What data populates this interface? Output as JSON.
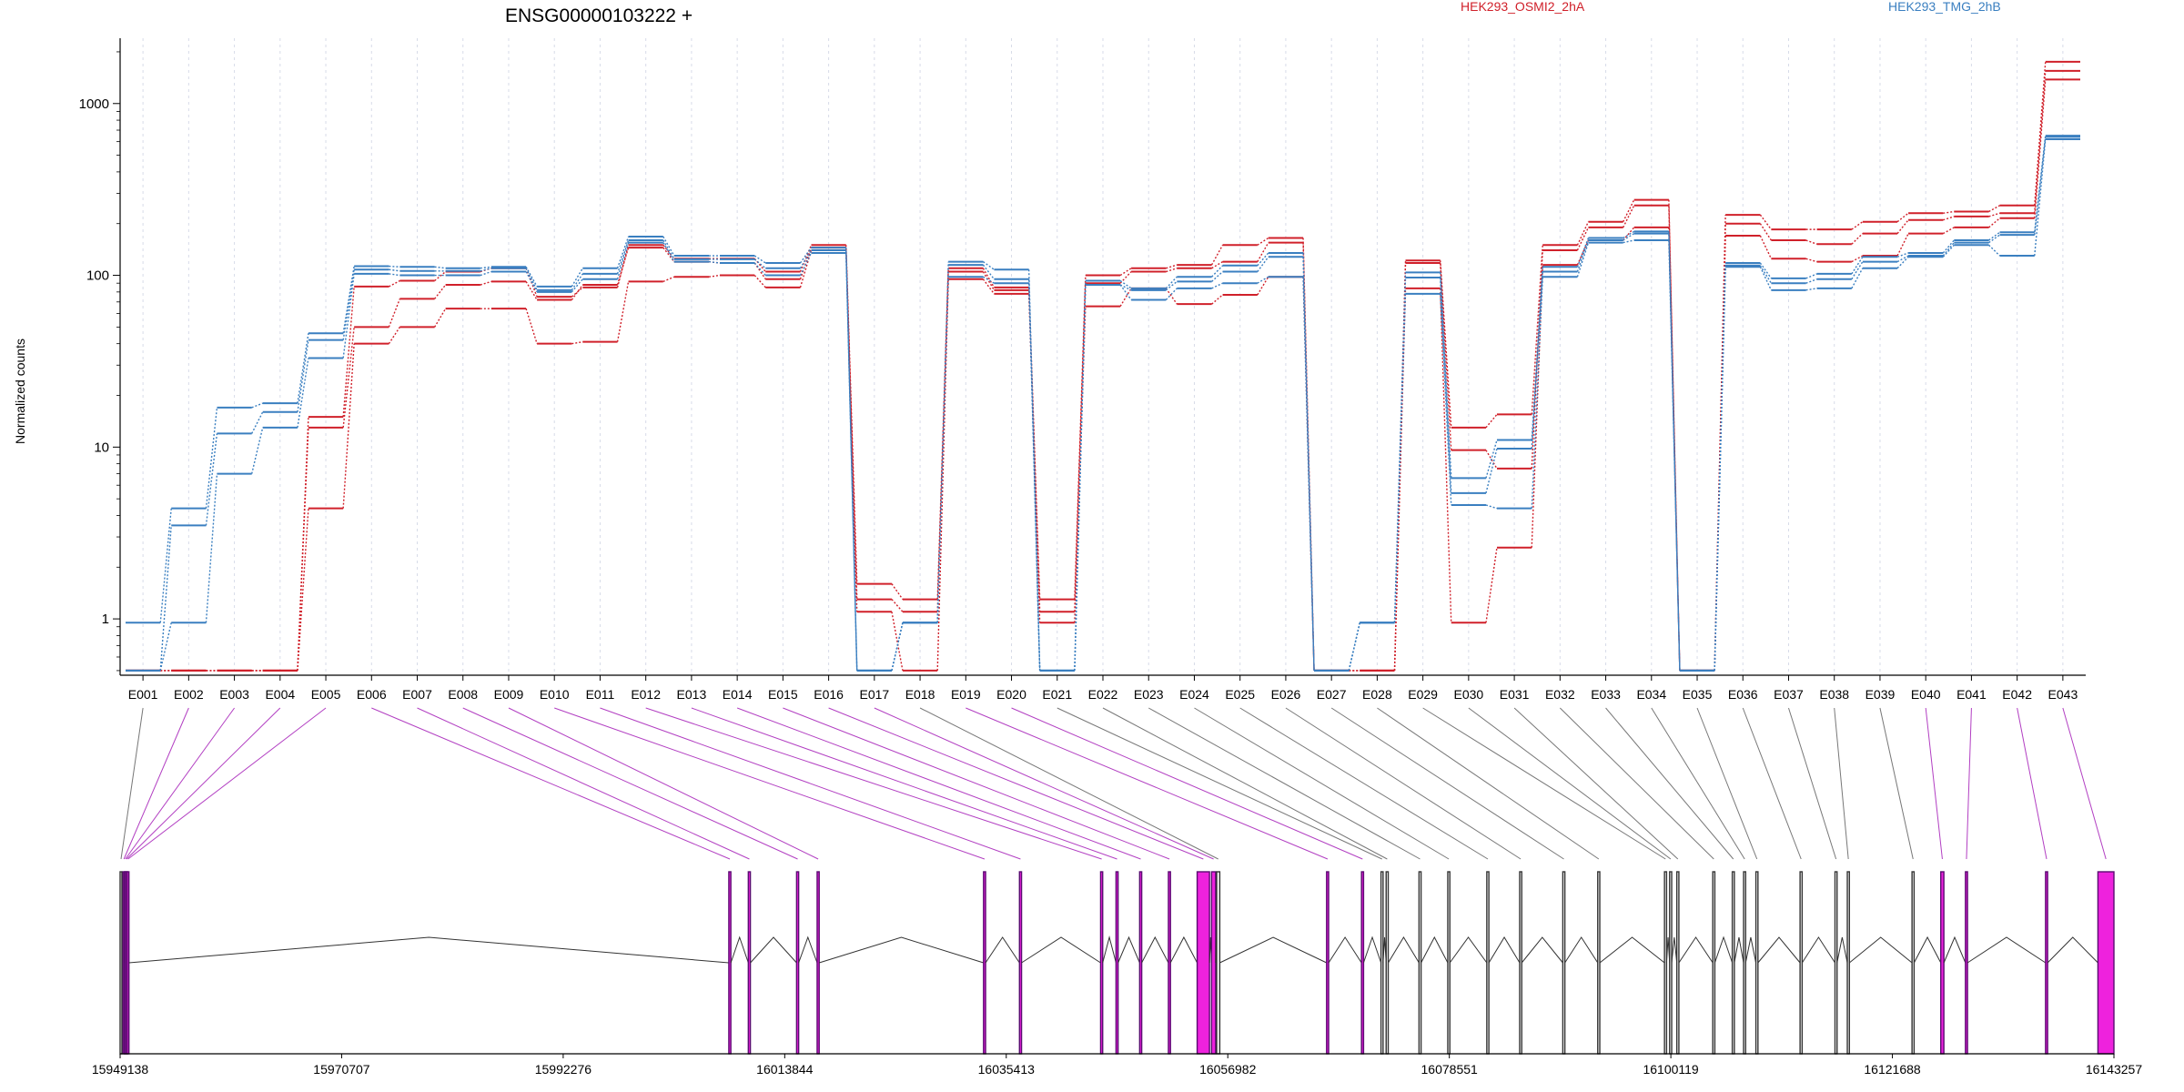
{
  "chart_data": {
    "type": "line",
    "title": "ENSG00000103222 +",
    "ylabel": "Normalized counts",
    "yscale": "log",
    "ylim": [
      0.47,
      2400
    ],
    "yticks": [
      "1",
      "10",
      "100",
      "1000"
    ],
    "ytick_values": [
      1,
      10,
      100,
      1000
    ],
    "legend": [
      {
        "name": "HEK293_OSMI2_2hA",
        "color": "#d0202a"
      },
      {
        "name": "HEK293_TMG_2hB",
        "color": "#3a7fc0"
      }
    ],
    "categories": [
      "E001",
      "E002",
      "E003",
      "E004",
      "E005",
      "E006",
      "E007",
      "E008",
      "E009",
      "E010",
      "E011",
      "E012",
      "E013",
      "E014",
      "E015",
      "E016",
      "E017",
      "E018",
      "E019",
      "E020",
      "E021",
      "E022",
      "E023",
      "E024",
      "E025",
      "E026",
      "E027",
      "E028",
      "E029",
      "E030",
      "E031",
      "E032",
      "E033",
      "E034",
      "E035",
      "E036",
      "E037",
      "E038",
      "E039",
      "E040",
      "E041",
      "E042",
      "E043"
    ],
    "series": [
      {
        "group": "HEK293_OSMI2_2hA",
        "color": "#d0202a",
        "values": [
          0.5,
          0.5,
          0.5,
          0.5,
          15,
          86,
          93,
          105,
          110,
          75,
          85,
          150,
          125,
          125,
          105,
          150,
          1.6,
          1.3,
          110,
          85,
          1.3,
          100,
          110,
          115,
          150,
          165,
          0.5,
          0.5,
          122,
          13,
          15.5,
          150,
          205,
          275,
          0.5,
          225,
          185,
          185,
          205,
          230,
          235,
          255,
          1750
        ]
      },
      {
        "group": "HEK293_OSMI2_2hA",
        "color": "#d0202a",
        "values": [
          0.5,
          0.5,
          0.5,
          0.5,
          13,
          50,
          73,
          88,
          92,
          72,
          88,
          145,
          120,
          118,
          95,
          145,
          1.3,
          1.1,
          105,
          82,
          1.1,
          90,
          105,
          110,
          120,
          155,
          0.5,
          0.5,
          118,
          9.6,
          7.5,
          140,
          190,
          255,
          0.5,
          200,
          160,
          152,
          175,
          210,
          220,
          230,
          1550
        ]
      },
      {
        "group": "HEK293_OSMI2_2hA",
        "color": "#d0202a",
        "values": [
          0.5,
          0.5,
          0.5,
          0.5,
          4.4,
          40,
          50,
          64,
          64,
          40,
          41,
          92,
          98,
          100,
          85,
          140,
          1.1,
          0.5,
          95,
          78,
          0.95,
          66,
          84,
          68,
          77,
          98,
          0.5,
          0.5,
          84,
          0.95,
          2.6,
          115,
          160,
          190,
          0.5,
          170,
          125,
          120,
          130,
          175,
          190,
          215,
          1380
        ]
      },
      {
        "group": "HEK293_TMG_2hB",
        "color": "#3a7fc0",
        "values": [
          0.95,
          4.4,
          17,
          18,
          46,
          113,
          112,
          110,
          112,
          86,
          110,
          168,
          130,
          130,
          118,
          145,
          0.5,
          0.95,
          120,
          108,
          0.5,
          93,
          84,
          98,
          114,
          135,
          0.5,
          0.95,
          104,
          6.6,
          11,
          112,
          165,
          180,
          0.5,
          118,
          96,
          102,
          128,
          135,
          160,
          178,
          650
        ]
      },
      {
        "group": "HEK293_TMG_2hB",
        "color": "#3a7fc0",
        "values": [
          0.5,
          3.5,
          12,
          16,
          42,
          108,
          106,
          106,
          110,
          82,
          102,
          160,
          124,
          124,
          110,
          140,
          0.5,
          0.95,
          115,
          95,
          0.5,
          88,
          82,
          92,
          105,
          128,
          0.5,
          0.95,
          97,
          5.4,
          9.8,
          105,
          160,
          175,
          0.5,
          114,
          90,
          95,
          120,
          130,
          155,
          172,
          640
        ]
      },
      {
        "group": "HEK293_TMG_2hB",
        "color": "#3a7fc0",
        "values": [
          0.5,
          0.95,
          7,
          13,
          33,
          102,
          100,
          100,
          105,
          80,
          95,
          155,
          120,
          118,
          100,
          135,
          0.5,
          0.95,
          98,
          90,
          0.5,
          88,
          72,
          84,
          90,
          98,
          0.5,
          0.95,
          78,
          4.6,
          4.4,
          98,
          155,
          160,
          0.5,
          112,
          82,
          84,
          110,
          128,
          150,
          130,
          620
        ]
      }
    ]
  },
  "gene_model": {
    "coordinate_labels": [
      "15949138",
      "15970707",
      "15992276",
      "16013844",
      "16035413",
      "16056982",
      "16078551",
      "16100119",
      "16121688",
      "16143257"
    ],
    "coordinate_values": [
      15949138,
      15970707,
      15992276,
      16013844,
      16035413,
      16056982,
      16078551,
      16100119,
      16121688,
      16143257
    ],
    "exons": [
      {
        "id": "E001",
        "start": 15949138,
        "end": 15949300,
        "sig": false
      },
      {
        "id": "E002",
        "start": 15949420,
        "end": 15949540,
        "sig": true
      },
      {
        "id": "E003",
        "start": 15949560,
        "end": 15949660,
        "sig": true
      },
      {
        "id": "E004",
        "start": 15949680,
        "end": 15949800,
        "sig": true
      },
      {
        "id": "E005",
        "start": 15949820,
        "end": 15949960,
        "sig": true
      },
      {
        "id": "E006",
        "start": 16008400,
        "end": 16008600,
        "sig": true
      },
      {
        "id": "E007",
        "start": 16010300,
        "end": 16010500,
        "sig": true
      },
      {
        "id": "E008",
        "start": 16015000,
        "end": 16015200,
        "sig": true
      },
      {
        "id": "E009",
        "start": 16017000,
        "end": 16017200,
        "sig": true
      },
      {
        "id": "E010",
        "start": 16033200,
        "end": 16033400,
        "sig": true
      },
      {
        "id": "E011",
        "start": 16036700,
        "end": 16036900,
        "sig": true
      },
      {
        "id": "E012",
        "start": 16044600,
        "end": 16044800,
        "sig": true
      },
      {
        "id": "E013",
        "start": 16046100,
        "end": 16046300,
        "sig": true
      },
      {
        "id": "E014",
        "start": 16048400,
        "end": 16048600,
        "sig": true
      },
      {
        "id": "E015",
        "start": 16051200,
        "end": 16051400,
        "sig": true
      },
      {
        "id": "E016",
        "start": 16054000,
        "end": 16055200,
        "sig": true
      },
      {
        "id": "E017",
        "start": 16055400,
        "end": 16055800,
        "sig": true
      },
      {
        "id": "E018",
        "start": 16055900,
        "end": 16056200,
        "sig": false
      },
      {
        "id": "E019",
        "start": 16066600,
        "end": 16066800,
        "sig": true
      },
      {
        "id": "E020",
        "start": 16070000,
        "end": 16070200,
        "sig": true
      },
      {
        "id": "E021",
        "start": 16071900,
        "end": 16072100,
        "sig": false
      },
      {
        "id": "E022",
        "start": 16072400,
        "end": 16072600,
        "sig": false
      },
      {
        "id": "E023",
        "start": 16075600,
        "end": 16075800,
        "sig": false
      },
      {
        "id": "E024",
        "start": 16078400,
        "end": 16078600,
        "sig": false
      },
      {
        "id": "E025",
        "start": 16082200,
        "end": 16082400,
        "sig": false
      },
      {
        "id": "E026",
        "start": 16085400,
        "end": 16085600,
        "sig": false
      },
      {
        "id": "E027",
        "start": 16089600,
        "end": 16089800,
        "sig": false
      },
      {
        "id": "E028",
        "start": 16093000,
        "end": 16093200,
        "sig": false
      },
      {
        "id": "E029",
        "start": 16099500,
        "end": 16099700,
        "sig": false
      },
      {
        "id": "E030",
        "start": 16100000,
        "end": 16100200,
        "sig": false
      },
      {
        "id": "E031",
        "start": 16100700,
        "end": 16100900,
        "sig": false
      },
      {
        "id": "E032",
        "start": 16104200,
        "end": 16104400,
        "sig": false
      },
      {
        "id": "E033",
        "start": 16106100,
        "end": 16106300,
        "sig": false
      },
      {
        "id": "E034",
        "start": 16107200,
        "end": 16107400,
        "sig": false
      },
      {
        "id": "E035",
        "start": 16108400,
        "end": 16108600,
        "sig": false
      },
      {
        "id": "E036",
        "start": 16112700,
        "end": 16112900,
        "sig": false
      },
      {
        "id": "E037",
        "start": 16116100,
        "end": 16116300,
        "sig": false
      },
      {
        "id": "E038",
        "start": 16117300,
        "end": 16117500,
        "sig": false
      },
      {
        "id": "E039",
        "start": 16123600,
        "end": 16123800,
        "sig": false
      },
      {
        "id": "E040",
        "start": 16126400,
        "end": 16126700,
        "sig": true
      },
      {
        "id": "E041",
        "start": 16128800,
        "end": 16129000,
        "sig": true
      },
      {
        "id": "E042",
        "start": 16136600,
        "end": 16136800,
        "sig": true
      },
      {
        "id": "E043",
        "start": 16141700,
        "end": 16143257,
        "sig": true
      }
    ]
  }
}
